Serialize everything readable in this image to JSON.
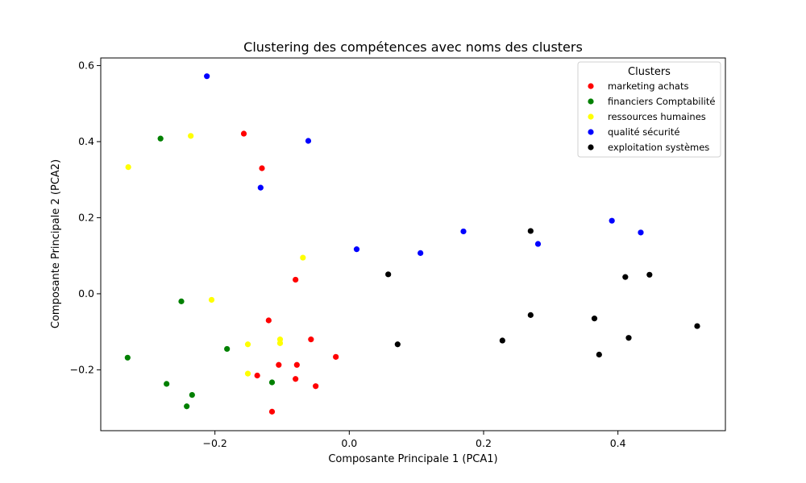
{
  "chart_data": {
    "type": "scatter",
    "title": "Clustering des compétences avec noms des clusters",
    "xlabel": "Composante Principale 1 (PCA1)",
    "ylabel": "Composante Principale 2 (PCA2)",
    "xlim": [
      -0.37,
      0.56
    ],
    "ylim": [
      -0.36,
      0.62
    ],
    "x_ticks": [
      -0.2,
      0.0,
      0.2,
      0.4
    ],
    "y_ticks": [
      -0.2,
      0.0,
      0.2,
      0.4,
      0.6
    ],
    "x_tick_labels": [
      "−0.2",
      "0.0",
      "0.2",
      "0.4"
    ],
    "y_tick_labels": [
      "−0.2",
      "0.0",
      "0.2",
      "0.4",
      "0.6"
    ],
    "grid": false,
    "legend": {
      "title": "Clusters",
      "position": "top-right"
    },
    "series": [
      {
        "name": "marketing achats",
        "color": "#ff0000",
        "points": [
          [
            -0.157,
            0.421
          ],
          [
            -0.13,
            0.33
          ],
          [
            -0.08,
            0.037
          ],
          [
            -0.12,
            -0.07
          ],
          [
            -0.057,
            -0.12
          ],
          [
            -0.02,
            -0.166
          ],
          [
            -0.105,
            -0.187
          ],
          [
            -0.078,
            -0.187
          ],
          [
            -0.137,
            -0.215
          ],
          [
            -0.08,
            -0.224
          ],
          [
            -0.05,
            -0.243
          ],
          [
            -0.115,
            -0.31
          ]
        ]
      },
      {
        "name": "financiers Comptabilité",
        "color": "#008000",
        "points": [
          [
            -0.281,
            0.408
          ],
          [
            -0.25,
            -0.02
          ],
          [
            -0.33,
            -0.168
          ],
          [
            -0.182,
            -0.145
          ],
          [
            -0.272,
            -0.237
          ],
          [
            -0.234,
            -0.266
          ],
          [
            -0.242,
            -0.296
          ],
          [
            -0.115,
            -0.233
          ]
        ]
      },
      {
        "name": "ressources humaines",
        "color": "#ffff00",
        "points": [
          [
            -0.329,
            0.333
          ],
          [
            -0.236,
            0.415
          ],
          [
            -0.069,
            0.095
          ],
          [
            -0.205,
            -0.016
          ],
          [
            -0.151,
            -0.133
          ],
          [
            -0.103,
            -0.12
          ],
          [
            -0.103,
            -0.13
          ],
          [
            -0.151,
            -0.21
          ]
        ]
      },
      {
        "name": "qualité sécurité",
        "color": "#0000ff",
        "points": [
          [
            -0.212,
            0.572
          ],
          [
            -0.061,
            0.402
          ],
          [
            -0.132,
            0.279
          ],
          [
            0.011,
            0.117
          ],
          [
            0.106,
            0.107
          ],
          [
            0.17,
            0.164
          ],
          [
            0.281,
            0.131
          ],
          [
            0.391,
            0.192
          ],
          [
            0.434,
            0.161
          ]
        ]
      },
      {
        "name": "exploitation systèmes",
        "color": "#000000",
        "points": [
          [
            0.27,
            0.165
          ],
          [
            0.058,
            0.051
          ],
          [
            0.072,
            -0.133
          ],
          [
            0.228,
            -0.123
          ],
          [
            0.27,
            -0.056
          ],
          [
            0.365,
            -0.065
          ],
          [
            0.372,
            -0.16
          ],
          [
            0.411,
            0.044
          ],
          [
            0.416,
            -0.116
          ],
          [
            0.447,
            0.05
          ],
          [
            0.518,
            -0.085
          ]
        ]
      }
    ]
  }
}
